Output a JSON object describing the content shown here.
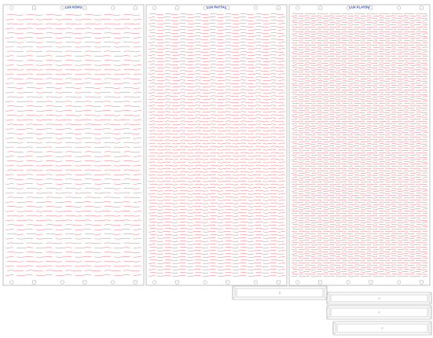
{
  "colors": {
    "outline": "#9a9a9a",
    "pattern": "#e03a4a",
    "title": "#1f3fb8",
    "label": "#6a6a6a",
    "background": "#ffffff"
  },
  "panels": [
    {
      "title": "LUX KOKU",
      "pattern": "loose"
    },
    {
      "title": "LUX PAYTAL",
      "pattern": "medium"
    },
    {
      "title": "LUX FLAYDU",
      "pattern": "dense"
    }
  ],
  "parts": [
    {
      "label": "S"
    },
    {
      "label": "S"
    },
    {
      "label": "S"
    },
    {
      "label": "S"
    }
  ]
}
